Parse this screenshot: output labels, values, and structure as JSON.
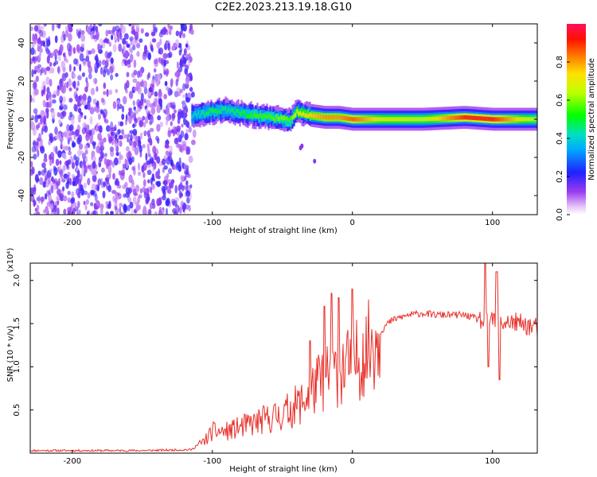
{
  "title": "C2E2.2023.213.19.18.G10",
  "colorbar": {
    "label": "Normalized spectral amplitude",
    "ticks": [
      "0.0",
      "0.2",
      "0.4",
      "0.6",
      "0.8"
    ],
    "range": [
      0,
      1
    ]
  },
  "chart_data": [
    {
      "type": "heatmap",
      "xlabel": "Height of straight line (km)",
      "ylabel": "Frequency (Hz)",
      "xlim": [
        -230,
        132
      ],
      "ylim": [
        -50,
        50
      ],
      "xticks": [
        "-200",
        "-100",
        "0",
        "100"
      ],
      "yticks": [
        "-40",
        "-20",
        "0",
        "20",
        "40"
      ],
      "noise_region_x": [
        -230,
        -115
      ],
      "signal_band": {
        "x": [
          -115,
          -100,
          -90,
          -80,
          -70,
          -60,
          -50,
          -45,
          -40,
          -35,
          -30,
          -20,
          -10,
          0,
          20,
          50,
          80,
          100,
          132
        ],
        "center_freq_hz": [
          2,
          4,
          5,
          3,
          2,
          1,
          0,
          -1,
          4,
          3,
          2,
          1,
          1,
          0,
          0,
          0,
          1,
          0,
          0
        ],
        "peak_amplitude": [
          0.4,
          0.5,
          0.45,
          0.5,
          0.55,
          0.55,
          0.6,
          0.55,
          0.7,
          0.7,
          0.75,
          0.8,
          0.8,
          0.85,
          0.7,
          0.65,
          0.9,
          0.9,
          0.6
        ]
      },
      "grid": false
    },
    {
      "type": "line",
      "xlabel": "Height of straight line (km)",
      "ylabel": "SNR (10 * v/v)",
      "y_multiplier": "(x10⁴)",
      "xlim": [
        -230,
        132
      ],
      "ylim": [
        0,
        2.2
      ],
      "xticks": [
        "-200",
        "-100",
        "0",
        "100"
      ],
      "yticks": [
        "0.5",
        "1.0",
        "1.5",
        "2.0"
      ],
      "color": "#e8302a",
      "x": [
        -230,
        -200,
        -150,
        -115,
        -105,
        -100,
        -90,
        -80,
        -70,
        -60,
        -50,
        -40,
        -35,
        -30,
        -25,
        -20,
        -15,
        -10,
        -5,
        0,
        5,
        10,
        15,
        20,
        25,
        30,
        40,
        50,
        60,
        70,
        80,
        90,
        95,
        100,
        105,
        110,
        120,
        132
      ],
      "y": [
        0.03,
        0.03,
        0.03,
        0.04,
        0.15,
        0.25,
        0.25,
        0.3,
        0.35,
        0.4,
        0.45,
        0.55,
        0.6,
        0.7,
        0.8,
        0.85,
        0.9,
        0.95,
        1.0,
        1.05,
        1.1,
        1.2,
        1.3,
        1.4,
        1.5,
        1.55,
        1.6,
        1.62,
        1.6,
        1.6,
        1.6,
        1.55,
        1.5,
        1.55,
        1.5,
        1.52,
        1.5,
        1.45
      ],
      "spikes": {
        "x": [
          -30,
          -20,
          -15,
          -10,
          0,
          95,
          97,
          103,
          105
        ],
        "y": [
          1.3,
          1.7,
          1.85,
          1.8,
          1.9,
          2.2,
          1.0,
          2.1,
          0.85
        ]
      },
      "grid": false
    }
  ]
}
